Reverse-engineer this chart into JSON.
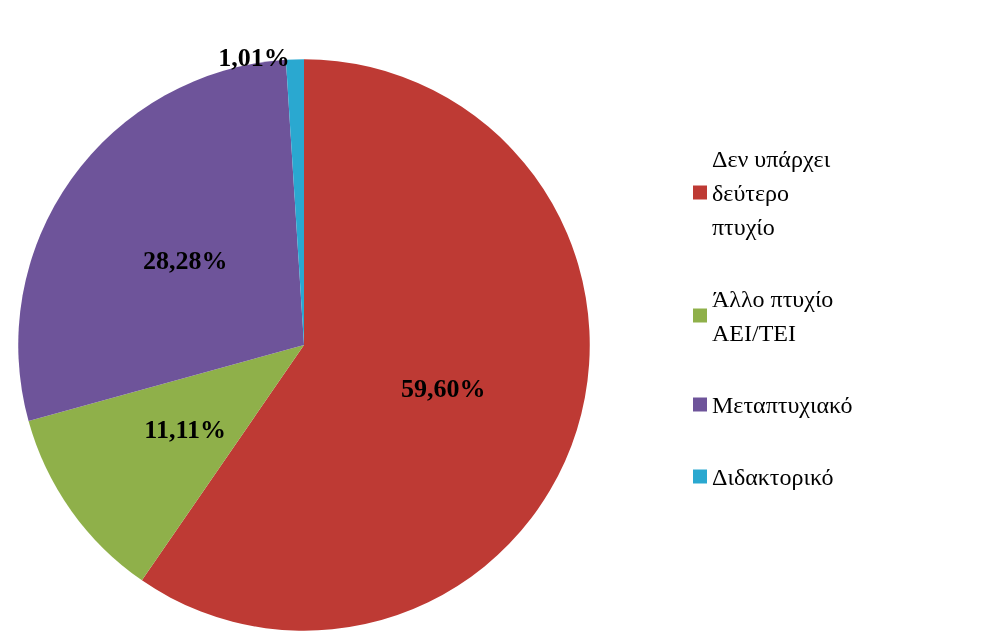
{
  "chart_data": {
    "type": "pie",
    "categories": [
      "Δεν υπάρχει δεύτερο πτυχίο",
      "Άλλο πτυχίο ΑΕΙ/ΤΕΙ",
      "Μεταπτυχιακό",
      "Διδακτορικό"
    ],
    "values": [
      59.6,
      11.11,
      28.28,
      1.01
    ],
    "colors": [
      "#be3a34",
      "#8fb04a",
      "#6e549a",
      "#2aa8d0"
    ],
    "value_labels": [
      "59,60%",
      "11,11%",
      "28,28%",
      "1,01%"
    ],
    "legend": "right"
  }
}
